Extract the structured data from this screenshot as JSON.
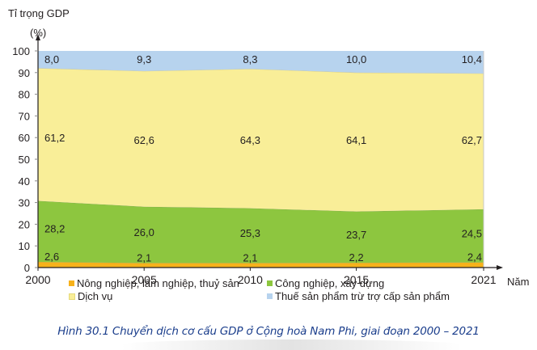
{
  "chart_data": {
    "type": "area",
    "stacked": true,
    "title": "Hình 30.1 Chuyển dịch cơ cấu GDP ở Cộng hoà Nam Phi, giai đoạn 2000 – 2021",
    "ylabel_line1": "Tỉ trọng GDP",
    "ylabel_line2": "(%)",
    "xlabel": "Năm",
    "x": [
      "2000",
      "2005",
      "2010",
      "2015",
      "2021"
    ],
    "x_values": [
      2000,
      2005,
      2010,
      2015,
      2021
    ],
    "ylim": [
      0,
      100
    ],
    "yticks": [
      0,
      10,
      20,
      30,
      40,
      50,
      60,
      70,
      80,
      90,
      100
    ],
    "grid": false,
    "legend_position": "bottom",
    "series": [
      {
        "name": "Nông nghiệp, lâm nghiệp, thuỷ sản",
        "color": "#f7b21b",
        "values": [
          2.6,
          2.1,
          2.1,
          2.2,
          2.4
        ],
        "labels": [
          "2,6",
          "2,1",
          "2,1",
          "2,2",
          "2,4"
        ]
      },
      {
        "name": "Công nghiệp, xây dựng",
        "color": "#8dc63f",
        "values": [
          28.2,
          26.0,
          25.3,
          23.7,
          24.5
        ],
        "labels": [
          "28,2",
          "26,0",
          "25,3",
          "23,7",
          "24,5"
        ]
      },
      {
        "name": "Dịch vụ",
        "color": "#f9ee98",
        "values": [
          61.2,
          62.6,
          64.3,
          64.1,
          62.7
        ],
        "labels": [
          "61,2",
          "62,6",
          "64,3",
          "64,1",
          "62,7"
        ]
      },
      {
        "name": "Thuế sản phẩm trừ trợ cấp sản phẩm",
        "color": "#b7d3ee",
        "values": [
          8.0,
          9.3,
          8.3,
          10.0,
          10.4
        ],
        "labels": [
          "8,0",
          "9,3",
          "8,3",
          "10,0",
          "10,4"
        ]
      }
    ]
  }
}
